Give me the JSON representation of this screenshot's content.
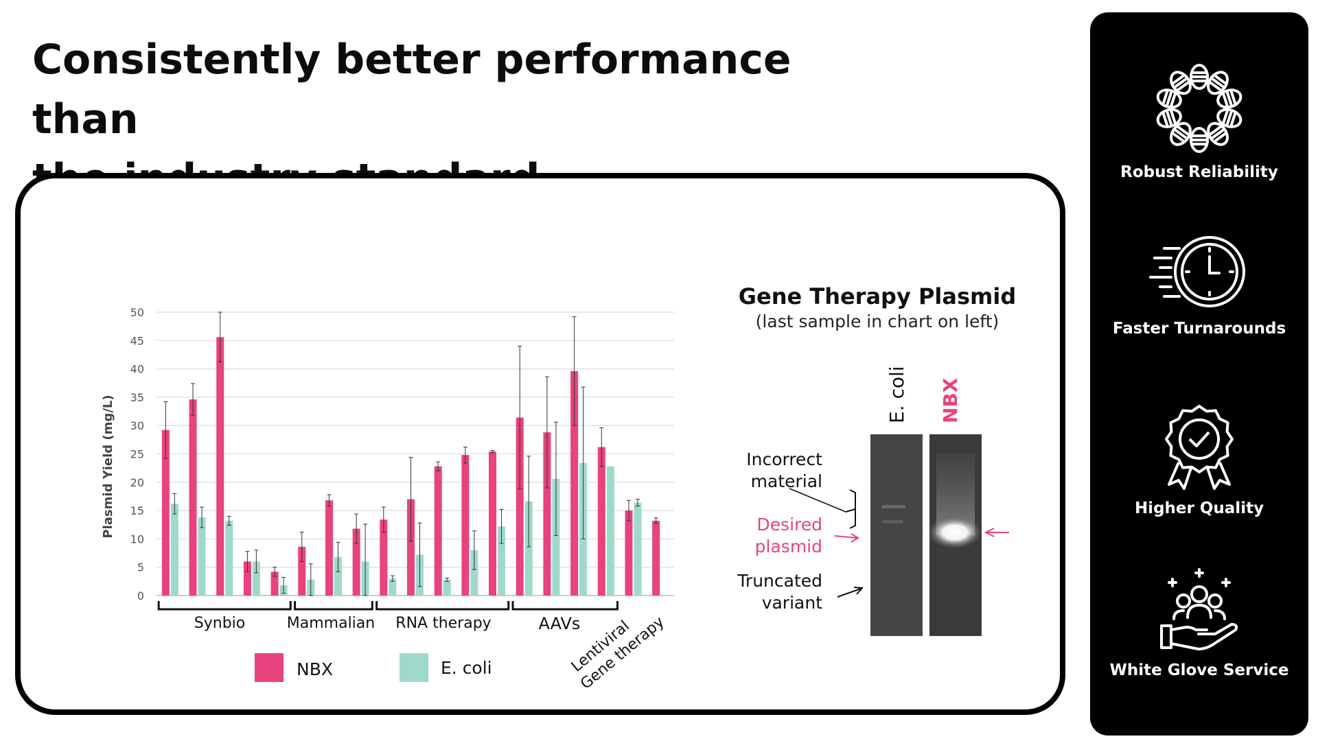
{
  "headline": {
    "line1": "Consistently better performance than",
    "line2": "the industry standard"
  },
  "chart_data": {
    "type": "bar",
    "ylabel": "Plasmid Yield (mg/L)",
    "ylim": [
      0,
      50
    ],
    "yticks": [
      0,
      5,
      10,
      15,
      20,
      25,
      30,
      35,
      40,
      45,
      50
    ],
    "grid": true,
    "series": [
      {
        "name": "NBX",
        "color": "#e8437e",
        "values": [
          29.2,
          34.6,
          45.6,
          6.0,
          4.2,
          8.6,
          16.8,
          11.8,
          13.4,
          17.0,
          22.8,
          24.8,
          25.4,
          31.4,
          28.8,
          39.6,
          26.2,
          15.0,
          13.2
        ],
        "errors": [
          5.0,
          2.8,
          4.4,
          1.8,
          0.8,
          2.6,
          1.0,
          2.6,
          2.2,
          7.4,
          0.8,
          1.4,
          0.2,
          12.6,
          9.8,
          9.6,
          3.4,
          1.8,
          0.5
        ]
      },
      {
        "name": "E. coli",
        "color": "#9fd9cc",
        "values": [
          16.2,
          13.8,
          13.2,
          6.0,
          1.8,
          2.8,
          6.8,
          6.0,
          3.0,
          7.2,
          2.8,
          8.0,
          12.2,
          16.6,
          20.6,
          23.4,
          22.8,
          16.4,
          0
        ],
        "errors": [
          1.8,
          1.8,
          0.8,
          2.0,
          1.4,
          2.8,
          2.6,
          6.6,
          0.5,
          5.6,
          0.3,
          3.4,
          3.0,
          8.0,
          10.0,
          13.4,
          0,
          0.6,
          0
        ]
      }
    ],
    "groups": [
      {
        "label": "Synbio",
        "start": 0,
        "end": 4
      },
      {
        "label": "Mammalian",
        "start": 5,
        "end": 7
      },
      {
        "label": "RNA therapy",
        "start": 8,
        "end": 12
      },
      {
        "label": "AAVs",
        "start": 13,
        "end": 16
      },
      {
        "label_line1": "Lentiviral",
        "label_line2": "Gene therapy",
        "start": 17,
        "end": 18
      }
    ],
    "legend": {
      "position": "bottom",
      "items": [
        "NBX",
        "E. coli"
      ]
    }
  },
  "gel": {
    "title": "Gene Therapy Plasmid",
    "subtitle": "(last sample in chart on left)",
    "lanes": [
      {
        "label": "E. coli",
        "color": "#111111"
      },
      {
        "label": "NBX",
        "color": "#e8437e"
      }
    ],
    "annotations": {
      "incorrect_line1": "Incorrect",
      "incorrect_line2": "material",
      "desired_line1": "Desired",
      "desired_line2": "plasmid",
      "truncated_line1": "Truncated",
      "truncated_line2": "variant"
    },
    "accent_color": "#e8437e"
  },
  "sidebar": {
    "features": [
      {
        "label": "Robust Reliability",
        "icon": "dna-ring-icon"
      },
      {
        "label": "Faster Turnarounds",
        "icon": "stopwatch-icon"
      },
      {
        "label": "Higher Quality",
        "icon": "quality-badge-icon"
      },
      {
        "label": "White Glove Service",
        "icon": "helping-hand-icon"
      }
    ]
  }
}
